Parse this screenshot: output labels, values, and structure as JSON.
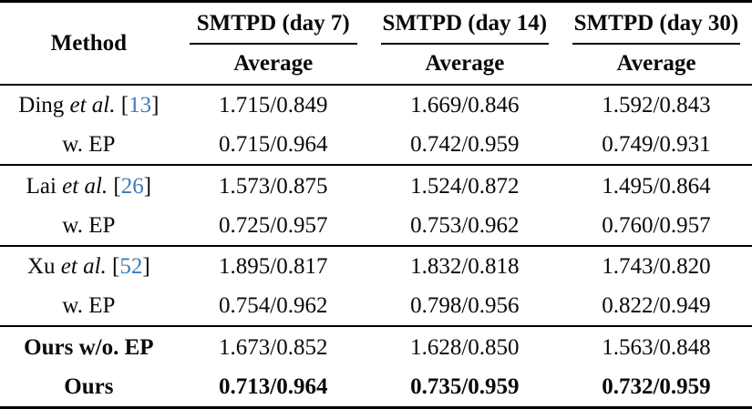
{
  "table": {
    "method_header": "Method",
    "group_headers": [
      "SMTPD (day 7)",
      "SMTPD (day 14)",
      "SMTPD (day 30)"
    ],
    "sub_headers": [
      "Average",
      "Average",
      "Average"
    ],
    "citation_color": "#3f7cb8",
    "rows": [
      {
        "name": "Ding ",
        "etal": "et al.",
        "cite_open": " [",
        "cite": "13",
        "cite_close": "]",
        "values": [
          "1.715/0.849",
          "1.669/0.846",
          "1.592/0.843"
        ]
      },
      {
        "name": "w. EP",
        "values": [
          "0.715/0.964",
          "0.742/0.959",
          "0.749/0.931"
        ]
      },
      {
        "name": "Lai ",
        "etal": "et al.",
        "cite_open": " [",
        "cite": "26",
        "cite_close": "]",
        "values": [
          "1.573/0.875",
          "1.524/0.872",
          "1.495/0.864"
        ]
      },
      {
        "name": "w. EP",
        "values": [
          "0.725/0.957",
          "0.753/0.962",
          "0.760/0.957"
        ]
      },
      {
        "name": "Xu ",
        "etal": "et al.",
        "cite_open": " [",
        "cite": "52",
        "cite_close": "]",
        "values": [
          "1.895/0.817",
          "1.832/0.818",
          "1.743/0.820"
        ]
      },
      {
        "name": "w. EP",
        "values": [
          "0.754/0.962",
          "0.798/0.956",
          "0.822/0.949"
        ]
      },
      {
        "name": "Ours w/o. EP",
        "values": [
          "1.673/0.852",
          "1.628/0.850",
          "1.563/0.848"
        ]
      },
      {
        "name": "Ours",
        "values": [
          "0.713/0.964",
          "0.735/0.959",
          "0.732/0.959"
        ]
      }
    ]
  }
}
